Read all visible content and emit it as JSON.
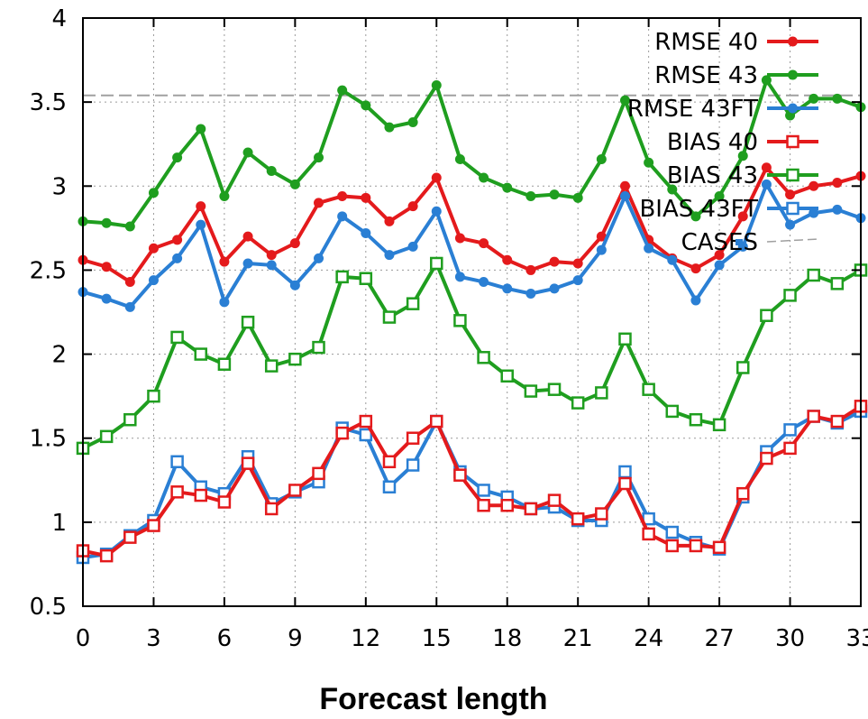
{
  "chart_data": {
    "type": "line",
    "title": "",
    "xlabel": "Forecast length",
    "ylabel": "",
    "xlim": [
      0,
      33
    ],
    "ylim": [
      0.5,
      4
    ],
    "xticks": [
      "0",
      "3",
      "6",
      "9",
      "12",
      "15",
      "18",
      "21",
      "24",
      "27",
      "30",
      "33"
    ],
    "yticks": [
      "0.5",
      "1",
      "1.5",
      "2",
      "2.5",
      "3",
      "3.5",
      "4"
    ],
    "grid": true,
    "legend_position": "top-right",
    "x": [
      0,
      1,
      2,
      3,
      4,
      5,
      6,
      7,
      8,
      9,
      10,
      11,
      12,
      13,
      14,
      15,
      16,
      17,
      18,
      19,
      20,
      21,
      22,
      23,
      24,
      25,
      26,
      27,
      28,
      29,
      30,
      31,
      32,
      33
    ],
    "series": [
      {
        "name": "RMSE 40",
        "color": "#e41a1c",
        "marker": "filled-circle",
        "values": [
          2.56,
          2.52,
          2.43,
          2.63,
          2.68,
          2.88,
          2.55,
          2.7,
          2.59,
          2.66,
          2.9,
          2.94,
          2.93,
          2.79,
          2.88,
          3.05,
          2.69,
          2.66,
          2.56,
          2.5,
          2.55,
          2.54,
          2.7,
          3.0,
          2.68,
          2.57,
          2.51,
          2.59,
          2.82,
          3.11,
          2.95,
          3.0,
          3.02,
          3.06
        ]
      },
      {
        "name": "RMSE 43",
        "color": "#1f9e1f",
        "marker": "filled-circle",
        "values": [
          2.79,
          2.78,
          2.76,
          2.96,
          3.17,
          3.34,
          2.94,
          3.2,
          3.09,
          3.01,
          3.17,
          3.57,
          3.48,
          3.35,
          3.38,
          3.6,
          3.16,
          3.05,
          2.99,
          2.94,
          2.95,
          2.93,
          3.16,
          3.51,
          3.14,
          2.98,
          2.82,
          2.94,
          3.18,
          3.63,
          3.42,
          3.52,
          3.52,
          3.47
        ]
      },
      {
        "name": "RMSE 43FT",
        "color": "#2a7fd4",
        "marker": "filled-circle",
        "values": [
          2.37,
          2.33,
          2.28,
          2.44,
          2.57,
          2.77,
          2.31,
          2.54,
          2.53,
          2.41,
          2.57,
          2.82,
          2.72,
          2.59,
          2.64,
          2.85,
          2.46,
          2.43,
          2.39,
          2.36,
          2.39,
          2.44,
          2.62,
          2.94,
          2.63,
          2.56,
          2.32,
          2.53,
          2.64,
          3.01,
          2.77,
          2.84,
          2.86,
          2.81
        ]
      },
      {
        "name": "BIAS 40",
        "color": "#e41a1c",
        "marker": "open-square",
        "values": [
          0.83,
          0.8,
          0.91,
          0.98,
          1.18,
          1.16,
          1.12,
          1.35,
          1.08,
          1.19,
          1.29,
          1.53,
          1.6,
          1.36,
          1.5,
          1.6,
          1.28,
          1.1,
          1.1,
          1.08,
          1.13,
          1.02,
          1.05,
          1.23,
          0.93,
          0.86,
          0.86,
          0.85,
          1.17,
          1.38,
          1.44,
          1.63,
          1.6,
          1.69
        ]
      },
      {
        "name": "BIAS 43",
        "color": "#1f9e1f",
        "marker": "open-square",
        "values": [
          1.44,
          1.51,
          1.61,
          1.75,
          2.1,
          2.0,
          1.94,
          2.19,
          1.93,
          1.97,
          2.04,
          2.46,
          2.45,
          2.22,
          2.3,
          2.54,
          2.2,
          1.98,
          1.87,
          1.78,
          1.79,
          1.71,
          1.77,
          2.09,
          1.79,
          1.66,
          1.61,
          1.58,
          1.92,
          2.23,
          2.35,
          2.47,
          2.42,
          2.5
        ]
      },
      {
        "name": "BIAS 43FT",
        "color": "#2a7fd4",
        "marker": "open-square",
        "values": [
          0.79,
          0.81,
          0.92,
          1.01,
          1.36,
          1.21,
          1.17,
          1.39,
          1.11,
          1.18,
          1.24,
          1.56,
          1.52,
          1.21,
          1.34,
          1.6,
          1.3,
          1.19,
          1.15,
          1.08,
          1.09,
          1.01,
          1.01,
          1.3,
          1.02,
          0.94,
          0.88,
          0.84,
          1.15,
          1.42,
          1.55,
          1.63,
          1.59,
          1.66
        ]
      },
      {
        "name": "CASES",
        "color": "#a0a0a0",
        "marker": "none",
        "dashed": true,
        "values": [
          3.54,
          3.54,
          3.54,
          3.54,
          3.54,
          3.54,
          3.54,
          3.54,
          3.54,
          3.54,
          3.54,
          3.54,
          3.54,
          3.54,
          3.54,
          3.54,
          3.54,
          3.54,
          3.54,
          3.54,
          3.54,
          3.54,
          3.54,
          3.54,
          3.54,
          3.54,
          3.54,
          3.54,
          3.54,
          3.54,
          3.54,
          3.54,
          3.54,
          3.54
        ]
      }
    ]
  }
}
